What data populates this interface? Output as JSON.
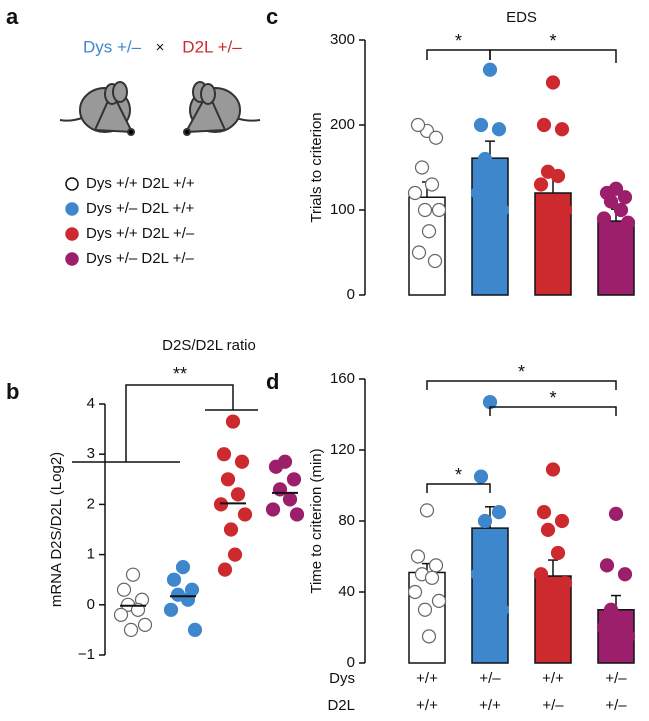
{
  "panel_a": {
    "label": "a",
    "cross": {
      "left": "Dys +/–",
      "symbol": "×",
      "right": "D2L +/–"
    },
    "legend": [
      {
        "name": "Dys +/+ D2L +/+",
        "color": "#ffffff"
      },
      {
        "name": "Dys +/–  D2L +/+",
        "color": "#3f87cc"
      },
      {
        "name": "Dys +/+ D2L +/–",
        "color": "#cc2a2e"
      },
      {
        "name": "Dys +/–  D2L +/–",
        "color": "#9b1f6a"
      }
    ]
  },
  "chart_data": [
    {
      "panel": "b",
      "type": "dot",
      "title": "D2S/D2L ratio",
      "ylabel": "mRNA D2S/D2L (Log2)",
      "ylim": [
        -1,
        4
      ],
      "yticks": [
        {
          "value": -1,
          "label": "−1"
        },
        0,
        1,
        2,
        3,
        4
      ],
      "groups": [
        {
          "mean": -0.02,
          "points": [
            0.6,
            0.3,
            0.1,
            0,
            -0.1,
            -0.2,
            -0.4,
            -0.5
          ]
        },
        {
          "mean": 0.17,
          "points": [
            0.75,
            0.5,
            0.3,
            0.2,
            0.1,
            -0.1,
            -0.5
          ]
        },
        {
          "mean": 2.02,
          "points": [
            3.65,
            3.0,
            2.85,
            2.5,
            2.2,
            2.0,
            1.8,
            1.5,
            1.0,
            0.7
          ]
        },
        {
          "mean": 2.23,
          "points": [
            2.85,
            2.75,
            2.5,
            2.3,
            2.1,
            1.9,
            1.8
          ]
        }
      ],
      "significance": [
        "**"
      ]
    },
    {
      "panel": "c",
      "type": "bar",
      "title": "EDS",
      "ylabel": "Trials to criterion",
      "ylim": [
        0,
        300
      ],
      "yticks": [
        0,
        100,
        200,
        300
      ],
      "groups": [
        {
          "mean": 115,
          "sem": 18,
          "points": [
            193,
            200,
            185,
            150,
            130,
            120,
            100,
            100,
            75,
            50,
            40
          ]
        },
        {
          "mean": 161,
          "sem": 20,
          "points": [
            265,
            200,
            195,
            160,
            130,
            120,
            100,
            80
          ]
        },
        {
          "mean": 120,
          "sem": 21,
          "points": [
            250,
            200,
            195,
            145,
            140,
            130,
            100,
            80,
            70,
            60,
            55
          ]
        },
        {
          "mean": 87,
          "sem": 14,
          "points": [
            125,
            120,
            115,
            110,
            100,
            90,
            85,
            70,
            60
          ]
        }
      ],
      "significance": [
        "*",
        "*"
      ]
    },
    {
      "panel": "d",
      "type": "bar",
      "ylabel": "Time to criterion (min)",
      "ylim": [
        0,
        160
      ],
      "yticks": [
        0,
        40,
        80,
        120,
        160
      ],
      "groups": [
        {
          "mean": 51,
          "sem": 5,
          "points": [
            86,
            60,
            55,
            50,
            48,
            40,
            35,
            30,
            15
          ]
        },
        {
          "mean": 76,
          "sem": 12,
          "points": [
            147,
            105,
            85,
            80,
            70,
            50,
            30,
            20
          ]
        },
        {
          "mean": 49,
          "sem": 9,
          "points": [
            109,
            85,
            80,
            75,
            62,
            50,
            45,
            40,
            30,
            20,
            12
          ]
        },
        {
          "mean": 30,
          "sem": 8,
          "points": [
            84,
            55,
            50,
            30,
            25,
            20,
            15,
            10
          ]
        }
      ],
      "x_rows": [
        {
          "label": "Dys",
          "categories": [
            "+/+",
            "+/–",
            "+/+",
            "+/–"
          ]
        },
        {
          "label": "D2L",
          "categories": [
            "+/+",
            "+/+",
            "+/–",
            "+/–"
          ]
        }
      ],
      "significance": [
        "*",
        "*",
        "*"
      ]
    }
  ]
}
